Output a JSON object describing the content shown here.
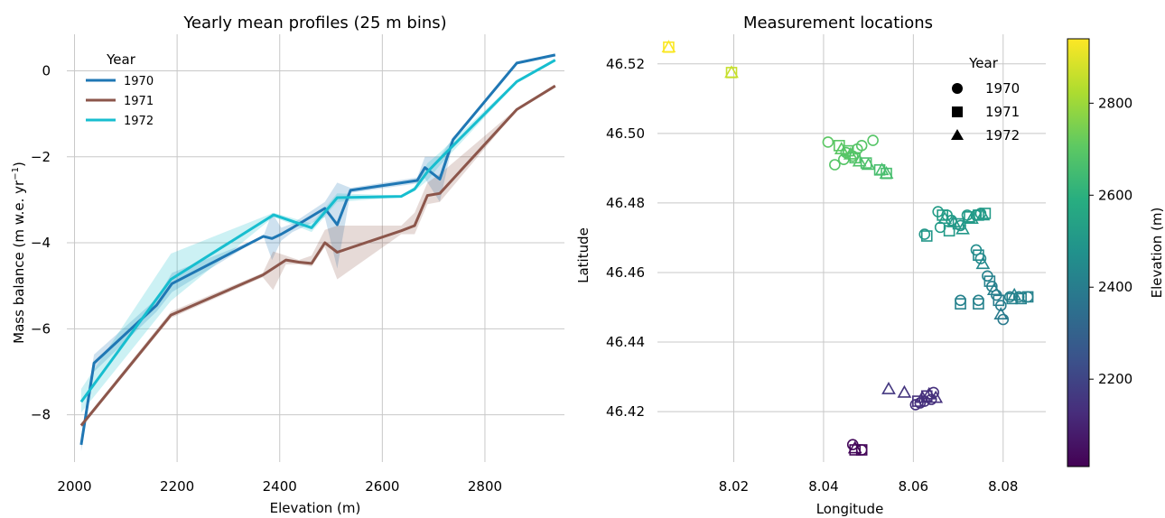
{
  "chart_data": [
    {
      "type": "line",
      "title": "Yearly mean profiles (25 m bins)",
      "xlabel": "Elevation (m)",
      "ylabel_main": "Mass balance (m w.e. yr",
      "ylabel_sup": "−1",
      "ylabel_end": ")",
      "xlim": [
        1985,
        2955
      ],
      "ylim": [
        -9.1,
        0.85
      ],
      "xticks": [
        2000,
        2200,
        2400,
        2600,
        2800
      ],
      "yticks": [
        0,
        -2,
        -4,
        -6,
        -8
      ],
      "grid": true,
      "legend": {
        "title": "Year",
        "placement": "top-left"
      },
      "series": [
        {
          "name": "1970",
          "color": "#1f77b4",
          "x": [
            2013,
            2038,
            2160,
            2190,
            2368,
            2385,
            2403,
            2425,
            2488,
            2512,
            2538,
            2668,
            2683,
            2712,
            2738,
            2862,
            2937
          ],
          "y": [
            -8.7,
            -6.8,
            -5.45,
            -4.95,
            -3.85,
            -3.9,
            -3.8,
            -3.65,
            -3.2,
            -3.58,
            -2.78,
            -2.55,
            -2.25,
            -2.52,
            -1.6,
            0.18,
            0.37
          ],
          "band": {
            "x": [
              2013,
              2038,
              2160,
              2190,
              2368,
              2385,
              2403,
              2425,
              2488,
              2512,
              2538,
              2668,
              2683,
              2712,
              2738,
              2862,
              2937
            ],
            "upper": [
              -8.5,
              -6.6,
              -5.3,
              -4.7,
              -3.85,
              -3.3,
              -3.65,
              -3.55,
              -3.05,
              -2.6,
              -2.72,
              -2.48,
              -2.0,
              -2.0,
              -1.55,
              0.2,
              0.39
            ],
            "lower": [
              -8.85,
              -7.0,
              -5.6,
              -5.15,
              -3.85,
              -4.4,
              -3.95,
              -3.75,
              -3.4,
              -4.6,
              -2.84,
              -2.62,
              -2.5,
              -3.05,
              -1.65,
              0.16,
              0.35
            ]
          }
        },
        {
          "name": "1971",
          "color": "#8c564b",
          "x": [
            2013,
            2188,
            2367,
            2412,
            2437,
            2462,
            2488,
            2512,
            2637,
            2663,
            2688,
            2712,
            2862,
            2937
          ],
          "y": [
            -8.25,
            -5.68,
            -4.75,
            -4.4,
            -4.45,
            -4.48,
            -4.0,
            -4.22,
            -3.72,
            -3.6,
            -2.9,
            -2.85,
            -0.9,
            -0.35
          ],
          "band": {
            "x": [
              2013,
              2188,
              2367,
              2387,
              2412,
              2437,
              2462,
              2488,
              2512,
              2637,
              2663,
              2688,
              2712,
              2862,
              2937
            ],
            "upper": [
              -8.2,
              -5.6,
              -4.7,
              -4.2,
              -4.3,
              -4.4,
              -4.3,
              -3.7,
              -3.6,
              -3.6,
              -3.3,
              -2.6,
              -2.4,
              -0.88,
              -0.33
            ],
            "lower": [
              -8.3,
              -5.75,
              -4.8,
              -5.1,
              -4.5,
              -4.5,
              -4.55,
              -4.1,
              -4.85,
              -3.8,
              -3.8,
              -3.1,
              -3.05,
              -0.92,
              -0.37
            ]
          }
        },
        {
          "name": "1972",
          "color": "#17becf",
          "x": [
            2013,
            2188,
            2388,
            2462,
            2512,
            2637,
            2663,
            2688,
            2712,
            2862,
            2937
          ],
          "y": [
            -7.7,
            -4.85,
            -3.35,
            -3.65,
            -2.95,
            -2.92,
            -2.75,
            -2.35,
            -2.05,
            -0.25,
            0.25
          ],
          "band": {
            "x": [
              2013,
              2188,
              2388,
              2462,
              2512,
              2637,
              2663,
              2688,
              2712,
              2862,
              2937
            ],
            "upper": [
              -7.4,
              -4.25,
              -3.3,
              -3.55,
              -2.85,
              -2.9,
              -2.7,
              -2.15,
              -1.9,
              -0.22,
              0.27
            ],
            "lower": [
              -7.95,
              -5.35,
              -3.4,
              -3.75,
              -3.05,
              -2.94,
              -2.8,
              -2.55,
              -2.2,
              -0.28,
              0.23
            ]
          }
        }
      ]
    },
    {
      "type": "scatter",
      "title": "Measurement locations",
      "xlabel": "Longitude",
      "ylabel": "Latitude",
      "xlim": [
        8.003,
        8.0895
      ],
      "ylim": [
        46.4055,
        46.5285
      ],
      "xticks": [
        "8.02",
        "8.04",
        "8.06",
        "8.08"
      ],
      "yticks": [
        "46.42",
        "46.44",
        "46.46",
        "46.48",
        "46.50",
        "46.52"
      ],
      "grid": true,
      "legend": {
        "title": "Year",
        "placement": "top-right",
        "entries": [
          {
            "label": "1970",
            "marker": "circle"
          },
          {
            "label": "1971",
            "marker": "square"
          },
          {
            "label": "1972",
            "marker": "triangle"
          }
        ]
      },
      "colorbar": {
        "label": "Elevation (m)",
        "cmap": "viridis",
        "range": [
          2010,
          2940
        ],
        "ticks": [
          "2200",
          "2400",
          "2600",
          "2800"
        ]
      },
      "points": [
        {
          "x": 8.0055,
          "y": 46.5248,
          "z": 2935,
          "m": "square"
        },
        {
          "x": 8.0055,
          "y": 46.5248,
          "z": 2935,
          "m": "triangle"
        },
        {
          "x": 8.0195,
          "y": 46.5175,
          "z": 2860,
          "m": "square"
        },
        {
          "x": 8.0195,
          "y": 46.5175,
          "z": 2860,
          "m": "triangle"
        },
        {
          "x": 8.041,
          "y": 46.4975,
          "z": 2700,
          "m": "circle"
        },
        {
          "x": 8.0425,
          "y": 46.491,
          "z": 2690,
          "m": "circle"
        },
        {
          "x": 8.0435,
          "y": 46.4965,
          "z": 2700,
          "m": "square"
        },
        {
          "x": 8.044,
          "y": 46.4955,
          "z": 2700,
          "m": "triangle"
        },
        {
          "x": 8.0445,
          "y": 46.4925,
          "z": 2690,
          "m": "circle"
        },
        {
          "x": 8.045,
          "y": 46.4945,
          "z": 2690,
          "m": "circle"
        },
        {
          "x": 8.0455,
          "y": 46.495,
          "z": 2690,
          "m": "square"
        },
        {
          "x": 8.046,
          "y": 46.494,
          "z": 2690,
          "m": "triangle"
        },
        {
          "x": 8.0465,
          "y": 46.4935,
          "z": 2690,
          "m": "circle"
        },
        {
          "x": 8.047,
          "y": 46.493,
          "z": 2680,
          "m": "square"
        },
        {
          "x": 8.0475,
          "y": 46.4955,
          "z": 2690,
          "m": "circle"
        },
        {
          "x": 8.048,
          "y": 46.492,
          "z": 2680,
          "m": "triangle"
        },
        {
          "x": 8.0485,
          "y": 46.4965,
          "z": 2690,
          "m": "circle"
        },
        {
          "x": 8.0495,
          "y": 46.4915,
          "z": 2670,
          "m": "square"
        },
        {
          "x": 8.05,
          "y": 46.491,
          "z": 2670,
          "m": "triangle"
        },
        {
          "x": 8.051,
          "y": 46.498,
          "z": 2690,
          "m": "circle"
        },
        {
          "x": 8.0525,
          "y": 46.4895,
          "z": 2660,
          "m": "square"
        },
        {
          "x": 8.053,
          "y": 46.4895,
          "z": 2660,
          "m": "triangle"
        },
        {
          "x": 8.054,
          "y": 46.4885,
          "z": 2660,
          "m": "square"
        },
        {
          "x": 8.054,
          "y": 46.4885,
          "z": 2660,
          "m": "triangle"
        },
        {
          "x": 8.0625,
          "y": 46.471,
          "z": 2500,
          "m": "circle"
        },
        {
          "x": 8.063,
          "y": 46.4705,
          "z": 2500,
          "m": "square"
        },
        {
          "x": 8.0655,
          "y": 46.4775,
          "z": 2520,
          "m": "circle"
        },
        {
          "x": 8.066,
          "y": 46.473,
          "z": 2510,
          "m": "circle"
        },
        {
          "x": 8.0665,
          "y": 46.4765,
          "z": 2520,
          "m": "square"
        },
        {
          "x": 8.067,
          "y": 46.4755,
          "z": 2510,
          "m": "triangle"
        },
        {
          "x": 8.0675,
          "y": 46.4765,
          "z": 2520,
          "m": "circle"
        },
        {
          "x": 8.068,
          "y": 46.472,
          "z": 2510,
          "m": "square"
        },
        {
          "x": 8.0685,
          "y": 46.475,
          "z": 2510,
          "m": "circle"
        },
        {
          "x": 8.069,
          "y": 46.4745,
          "z": 2510,
          "m": "triangle"
        },
        {
          "x": 8.07,
          "y": 46.474,
          "z": 2500,
          "m": "square"
        },
        {
          "x": 8.0705,
          "y": 46.4735,
          "z": 2500,
          "m": "circle"
        },
        {
          "x": 8.071,
          "y": 46.4725,
          "z": 2500,
          "m": "triangle"
        },
        {
          "x": 8.072,
          "y": 46.4765,
          "z": 2510,
          "m": "circle"
        },
        {
          "x": 8.0725,
          "y": 46.476,
          "z": 2510,
          "m": "square"
        },
        {
          "x": 8.073,
          "y": 46.4755,
          "z": 2510,
          "m": "triangle"
        },
        {
          "x": 8.074,
          "y": 46.4765,
          "z": 2510,
          "m": "circle"
        },
        {
          "x": 8.0745,
          "y": 46.4765,
          "z": 2510,
          "m": "square"
        },
        {
          "x": 8.075,
          "y": 46.477,
          "z": 2510,
          "m": "circle"
        },
        {
          "x": 8.0755,
          "y": 46.4765,
          "z": 2510,
          "m": "triangle"
        },
        {
          "x": 8.076,
          "y": 46.477,
          "z": 2510,
          "m": "square"
        },
        {
          "x": 8.074,
          "y": 46.4665,
          "z": 2460,
          "m": "circle"
        },
        {
          "x": 8.0745,
          "y": 46.465,
          "z": 2450,
          "m": "square"
        },
        {
          "x": 8.075,
          "y": 46.464,
          "z": 2450,
          "m": "circle"
        },
        {
          "x": 8.0755,
          "y": 46.4625,
          "z": 2440,
          "m": "triangle"
        },
        {
          "x": 8.0765,
          "y": 46.459,
          "z": 2420,
          "m": "circle"
        },
        {
          "x": 8.077,
          "y": 46.4575,
          "z": 2420,
          "m": "square"
        },
        {
          "x": 8.0775,
          "y": 46.456,
          "z": 2410,
          "m": "circle"
        },
        {
          "x": 8.078,
          "y": 46.455,
          "z": 2410,
          "m": "triangle"
        },
        {
          "x": 8.0785,
          "y": 46.4535,
          "z": 2400,
          "m": "circle"
        },
        {
          "x": 8.079,
          "y": 46.452,
          "z": 2400,
          "m": "square"
        },
        {
          "x": 8.0795,
          "y": 46.4505,
          "z": 2400,
          "m": "circle"
        },
        {
          "x": 8.0795,
          "y": 46.448,
          "z": 2390,
          "m": "triangle"
        },
        {
          "x": 8.08,
          "y": 46.4465,
          "z": 2390,
          "m": "circle"
        },
        {
          "x": 8.0705,
          "y": 46.452,
          "z": 2420,
          "m": "circle"
        },
        {
          "x": 8.0705,
          "y": 46.451,
          "z": 2420,
          "m": "square"
        },
        {
          "x": 8.0745,
          "y": 46.452,
          "z": 2420,
          "m": "circle"
        },
        {
          "x": 8.0745,
          "y": 46.451,
          "z": 2420,
          "m": "square"
        },
        {
          "x": 8.0815,
          "y": 46.453,
          "z": 2420,
          "m": "circle"
        },
        {
          "x": 8.082,
          "y": 46.4525,
          "z": 2420,
          "m": "square"
        },
        {
          "x": 8.0825,
          "y": 46.4535,
          "z": 2420,
          "m": "triangle"
        },
        {
          "x": 8.0835,
          "y": 46.453,
          "z": 2420,
          "m": "circle"
        },
        {
          "x": 8.084,
          "y": 46.4525,
          "z": 2420,
          "m": "square"
        },
        {
          "x": 8.0855,
          "y": 46.453,
          "z": 2420,
          "m": "circle"
        },
        {
          "x": 8.0855,
          "y": 46.453,
          "z": 2420,
          "m": "square"
        },
        {
          "x": 8.0545,
          "y": 46.4265,
          "z": 2160,
          "m": "triangle"
        },
        {
          "x": 8.058,
          "y": 46.4255,
          "z": 2150,
          "m": "triangle"
        },
        {
          "x": 8.0605,
          "y": 46.422,
          "z": 2140,
          "m": "circle"
        },
        {
          "x": 8.061,
          "y": 46.423,
          "z": 2140,
          "m": "square"
        },
        {
          "x": 8.0615,
          "y": 46.4225,
          "z": 2140,
          "m": "circle"
        },
        {
          "x": 8.062,
          "y": 46.424,
          "z": 2140,
          "m": "triangle"
        },
        {
          "x": 8.0625,
          "y": 46.423,
          "z": 2140,
          "m": "circle"
        },
        {
          "x": 8.063,
          "y": 46.4245,
          "z": 2140,
          "m": "square"
        },
        {
          "x": 8.0635,
          "y": 46.425,
          "z": 2140,
          "m": "triangle"
        },
        {
          "x": 8.064,
          "y": 46.4235,
          "z": 2140,
          "m": "circle"
        },
        {
          "x": 8.0645,
          "y": 46.4255,
          "z": 2140,
          "m": "circle"
        },
        {
          "x": 8.065,
          "y": 46.424,
          "z": 2140,
          "m": "triangle"
        },
        {
          "x": 8.0465,
          "y": 46.4105,
          "z": 2030,
          "m": "circle"
        },
        {
          "x": 8.047,
          "y": 46.4095,
          "z": 2030,
          "m": "triangle"
        },
        {
          "x": 8.047,
          "y": 46.409,
          "z": 2025,
          "m": "square"
        },
        {
          "x": 8.0485,
          "y": 46.409,
          "z": 2025,
          "m": "circle"
        },
        {
          "x": 8.0485,
          "y": 46.409,
          "z": 2025,
          "m": "square"
        }
      ]
    }
  ]
}
